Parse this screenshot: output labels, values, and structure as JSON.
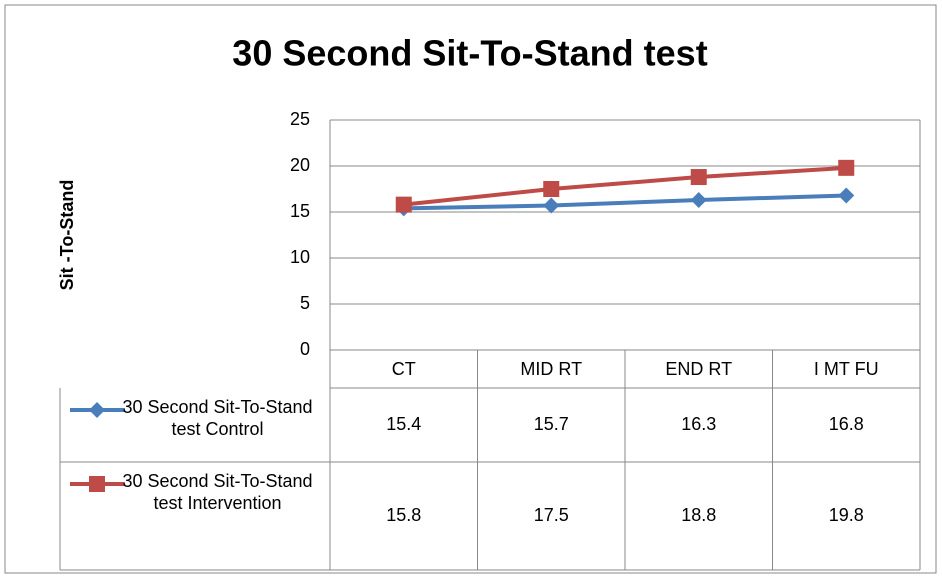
{
  "chart_data": {
    "type": "line",
    "title": "30 Second Sit-To-Stand test",
    "y_label": "Sit -To-Stand",
    "categories": [
      "CT",
      "MID RT",
      "END RT",
      "I MT FU"
    ],
    "series": [
      {
        "name": "30 Second Sit-To-Stand test Control",
        "color": "#4a7ebb",
        "marker": "diamond",
        "values": [
          15.4,
          15.7,
          16.3,
          16.8
        ]
      },
      {
        "name": "30 Second Sit-To-Stand test Intervention",
        "color": "#be4b48",
        "marker": "square",
        "values": [
          15.8,
          17.5,
          18.8,
          19.8
        ]
      }
    ],
    "ylim": [
      0,
      25
    ],
    "yticks": [
      0,
      5,
      10,
      15,
      20,
      25
    ],
    "grid": true
  }
}
